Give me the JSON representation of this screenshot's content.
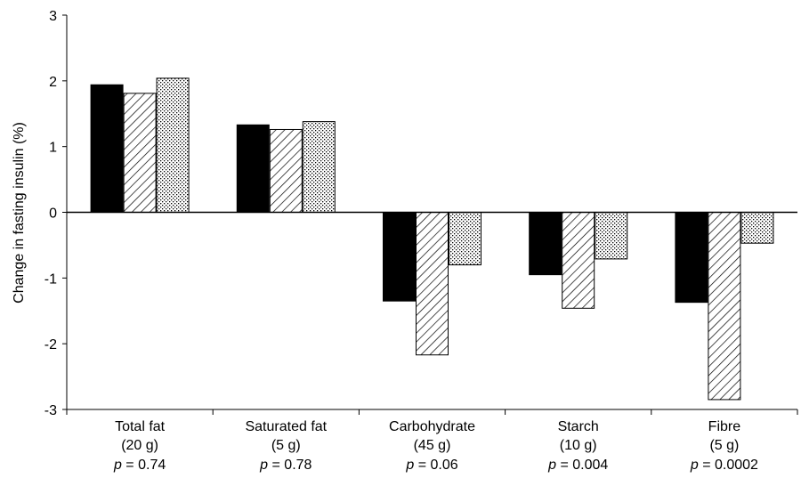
{
  "chart_data": {
    "type": "bar",
    "ylabel": "Change in fasting insulin (%)",
    "ylim": [
      -3,
      3
    ],
    "yticks": [
      "3",
      "2",
      "1",
      "0",
      "-1",
      "-2",
      "-3"
    ],
    "categories": [
      {
        "name": "Total fat",
        "amount": "(20 g)",
        "p_label": "p",
        "p_value": " = 0.74"
      },
      {
        "name": "Saturated fat",
        "amount": "(5 g)",
        "p_label": "p",
        "p_value": " = 0.78"
      },
      {
        "name": "Carbohydrate",
        "amount": "(45 g)",
        "p_label": "p",
        "p_value": " = 0.06"
      },
      {
        "name": "Starch",
        "amount": "(10 g)",
        "p_label": "p",
        "p_value": " = 0.004"
      },
      {
        "name": "Fibre",
        "amount": "(5 g)",
        "p_label": "p",
        "p_value": " = 0.0002"
      }
    ],
    "series": [
      {
        "fill": "solid",
        "color": "#000000",
        "values": [
          1.94,
          1.33,
          -1.35,
          -0.95,
          -1.37
        ]
      },
      {
        "fill": "hatched",
        "color": "#000000",
        "values": [
          1.81,
          1.26,
          -2.17,
          -1.46,
          -2.85
        ]
      },
      {
        "fill": "dotted",
        "color": "#000000",
        "values": [
          2.04,
          1.38,
          -0.8,
          -0.71,
          -0.47
        ]
      }
    ],
    "grid": false,
    "legend": false
  }
}
